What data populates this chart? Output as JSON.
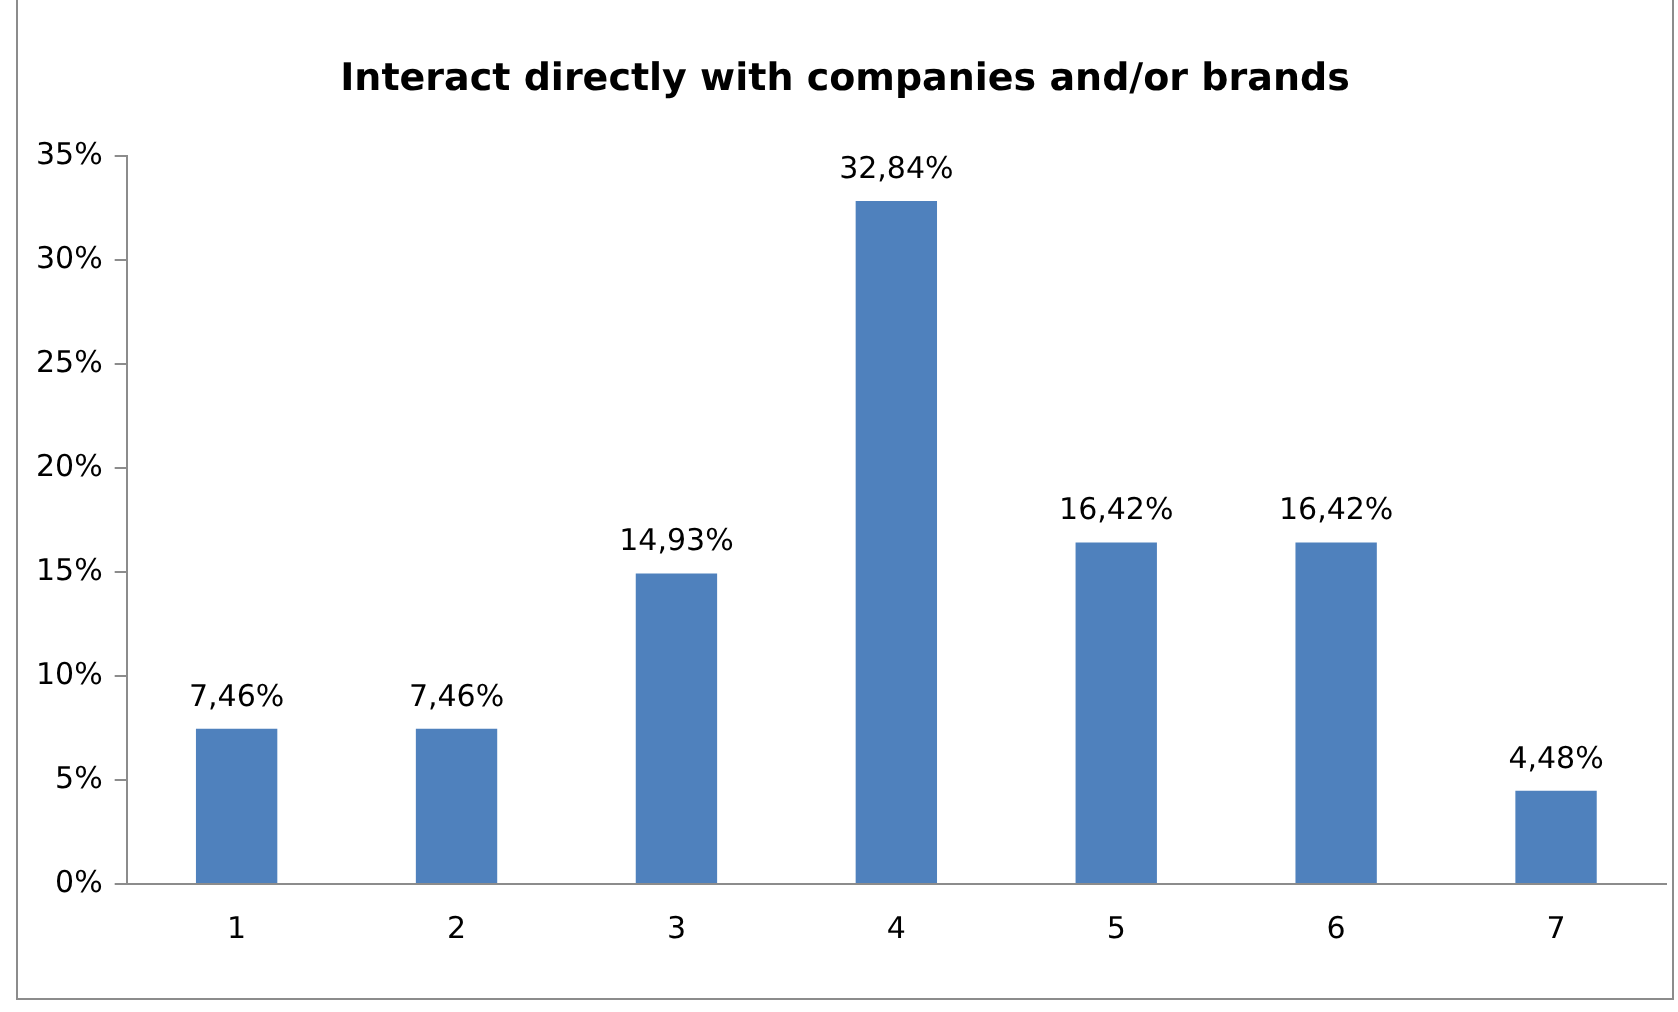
{
  "chart_data": {
    "type": "bar",
    "title": "Interact directly with companies and/or brands",
    "categories": [
      "1",
      "2",
      "3",
      "4",
      "5",
      "6",
      "7"
    ],
    "values": [
      7.46,
      7.46,
      14.93,
      32.84,
      16.42,
      16.42,
      4.48
    ],
    "value_labels": [
      "7,46%",
      "7,46%",
      "14,93%",
      "32,84%",
      "16,42%",
      "16,42%",
      "4,48%"
    ],
    "color": "#4f81bd",
    "ylim": [
      0,
      35
    ],
    "yticks": [
      {
        "value": 0,
        "label": "0%"
      },
      {
        "value": 5,
        "label": "5%"
      },
      {
        "value": 10,
        "label": "10%"
      },
      {
        "value": 15,
        "label": "15%"
      },
      {
        "value": 20,
        "label": "20%"
      },
      {
        "value": 25,
        "label": "25%"
      },
      {
        "value": 30,
        "label": "30%"
      },
      {
        "value": 35,
        "label": "35%"
      }
    ],
    "grid": false,
    "legend": false
  }
}
